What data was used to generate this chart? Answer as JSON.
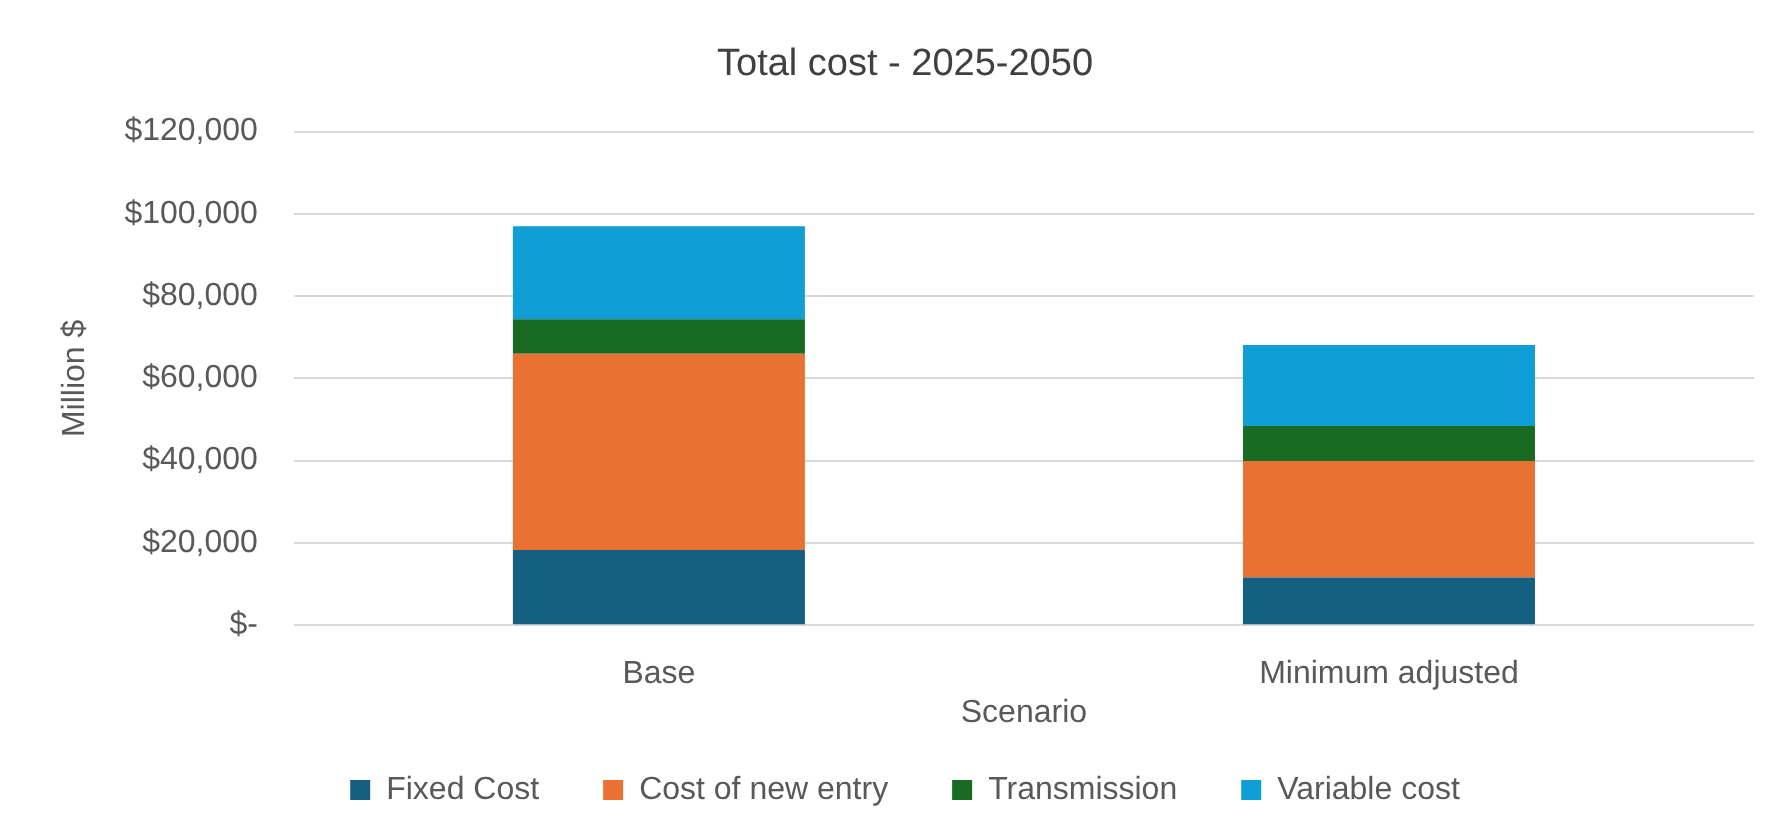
{
  "chart_data": {
    "type": "bar",
    "title": "Total cost - 2025-2050",
    "xlabel": "Scenario",
    "ylabel": "Million $",
    "categories": [
      "Base",
      "Minimum adjusted"
    ],
    "series": [
      {
        "name": "Fixed Cost",
        "color": "#156082",
        "values": [
          18300,
          11600
        ]
      },
      {
        "name": "Cost of new entry",
        "color": "#e97132",
        "values": [
          47700,
          28300
        ]
      },
      {
        "name": "Transmission",
        "color": "#196b24",
        "values": [
          8400,
          8500
        ]
      },
      {
        "name": "Variable cost",
        "color": "#0f9ed5",
        "values": [
          22600,
          19700
        ]
      }
    ],
    "stacked": true,
    "ylim": [
      0,
      120000
    ],
    "yticks": [
      {
        "value": 0,
        "label": "$-"
      },
      {
        "value": 20000,
        "label": "$20,000"
      },
      {
        "value": 40000,
        "label": "$40,000"
      },
      {
        "value": 60000,
        "label": "$60,000"
      },
      {
        "value": 80000,
        "label": "$80,000"
      },
      {
        "value": 100000,
        "label": "$100,000"
      },
      {
        "value": 120000,
        "label": "$120,000"
      }
    ],
    "grid": "y",
    "legend": "bottom"
  }
}
